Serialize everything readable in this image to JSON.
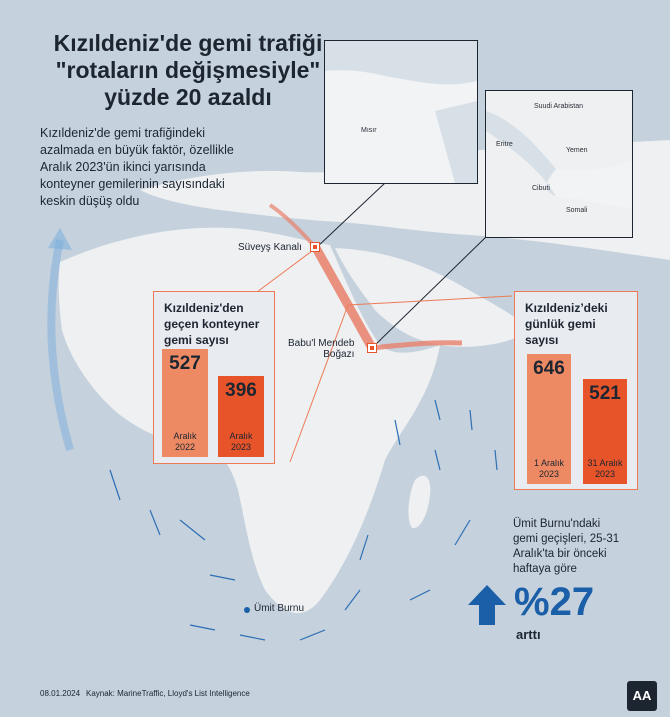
{
  "title_lines": [
    "Kızıldeniz'de gemi trafiği",
    "\"rotaların değişmesiyle\"",
    "yüzde 20 azaldı"
  ],
  "intro": [
    "Kızıldeniz'de gemi trafiğindeki",
    "azalmada en büyük faktör, özellikle",
    "Aralık 2023'ün ikinci yarısında",
    "konteyner gemilerinin sayısındaki",
    "keskin düşüş oldu"
  ],
  "places": {
    "suez": "Süveyş Kanalı",
    "bab_line1": "Babu'l Mendeb",
    "bab_line2": "Boğazı",
    "cape": "Ümit Burnu"
  },
  "inset1_labels": {
    "egypt": "Mısır"
  },
  "inset2_labels": {
    "saudi": "Suudi Arabistan",
    "yemen": "Yemen",
    "eritrea": "Eritre",
    "djibouti": "Cibuti",
    "somalia": "Somali"
  },
  "colors": {
    "accent": "#e8542a",
    "accent_light": "#ee8a63",
    "blue": "#1a5fa8",
    "route": "#e8806a"
  },
  "chart_data": [
    {
      "type": "bar",
      "title": "Kızıldeniz'den geçen konteyner gemi sayısı",
      "title_lines": [
        "Kızıldeniz'den",
        "geçen konteyner",
        "gemi sayısı"
      ],
      "categories": [
        "Aralık 2022",
        "Aralık 2023"
      ],
      "category_lines": [
        [
          "Aralık",
          "2022"
        ],
        [
          "Aralık",
          "2023"
        ]
      ],
      "values": [
        527,
        396
      ],
      "ylim": [
        0,
        527
      ]
    },
    {
      "type": "bar",
      "title": "Kızıldeniz'deki günlük gemi sayısı",
      "title_lines": [
        "Kızıldeniz’deki",
        "günlük gemi",
        "sayısı"
      ],
      "categories": [
        "1 Aralık 2023",
        "31 Aralık 2023"
      ],
      "category_lines": [
        [
          "1 Aralık",
          "2023"
        ],
        [
          "31 Aralık",
          "2023"
        ]
      ],
      "values": [
        646,
        521
      ],
      "ylim": [
        0,
        646
      ]
    }
  ],
  "note_lines": [
    "Ümit Burnu'ndaki",
    "gemi geçişleri, 25-31",
    "Aralık'ta bir önceki",
    "haftaya göre"
  ],
  "big_value": "%27",
  "big_sub": "arttı",
  "footer": {
    "date": "08.01.2024",
    "source": "Kaynak: MarineTraffic, Lloyd's List Intelligence",
    "logo": "AA"
  }
}
